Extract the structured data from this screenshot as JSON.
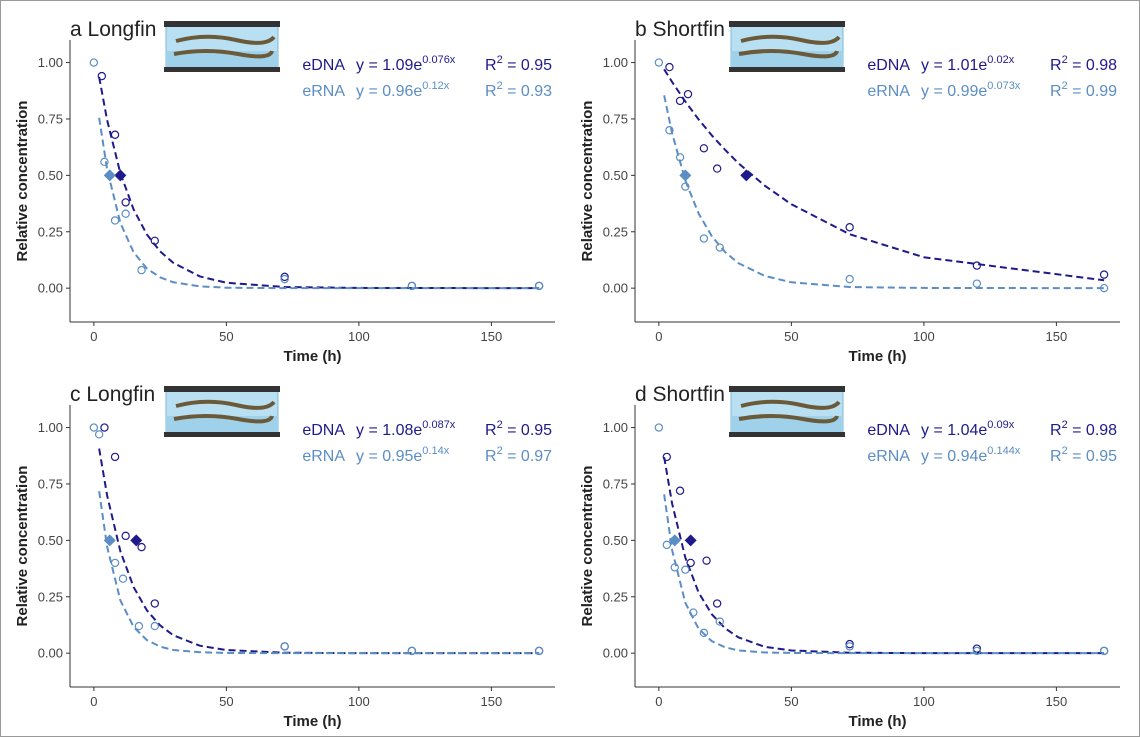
{
  "chart_data": [
    {
      "type": "scatter",
      "title": "a Longfin",
      "x_label": "Time (h)",
      "y_label": "Relative concentration",
      "xlim": [
        -9,
        174
      ],
      "ylim": [
        -0.15,
        1.1
      ],
      "xticks": [
        0,
        50,
        100,
        150
      ],
      "yticks": [
        {
          "value": 0,
          "label": "0.00"
        },
        {
          "value": 0.25,
          "label": "0.25"
        },
        {
          "value": 0.5,
          "label": "0.50"
        },
        {
          "value": 0.75,
          "label": "0.75"
        },
        {
          "value": 1,
          "label": "1.00"
        }
      ],
      "series": [
        {
          "name": "eDNA",
          "color": "#1f1a8c",
          "x": [
            3,
            8,
            12,
            23,
            72,
            120,
            168
          ],
          "values": [
            0.94,
            0.68,
            0.38,
            0.21,
            0.05,
            0.01,
            0.01
          ],
          "half_life_x": 10,
          "half_life_y": 0.5,
          "fit_x": [
            2,
            5,
            10,
            15,
            20,
            25,
            30,
            40,
            50,
            72,
            100,
            168
          ],
          "fit_values": [
            0.936,
            0.745,
            0.51,
            0.349,
            0.238,
            0.163,
            0.112,
            0.052,
            0.024,
            0.005,
            0.001,
            0
          ],
          "equation": "y = 1.09e",
          "exponent": "0.076x",
          "r2": "R",
          "r2_sup": "2",
          "r2_value": " = 0.95"
        },
        {
          "name": "eRNA",
          "color": "#5b8ec4",
          "x": [
            0,
            4,
            8,
            12,
            18,
            72,
            120,
            168
          ],
          "values": [
            1.0,
            0.56,
            0.3,
            0.33,
            0.08,
            0.04,
            0.01,
            0.01
          ],
          "half_life_x": 6,
          "half_life_y": 0.5,
          "fit_x": [
            2,
            5,
            10,
            15,
            20,
            25,
            30,
            40,
            50,
            72,
            100,
            168
          ],
          "fit_values": [
            0.755,
            0.527,
            0.289,
            0.159,
            0.087,
            0.048,
            0.026,
            0.008,
            0.002,
            0,
            0,
            0
          ],
          "equation": "y = 0.96e",
          "exponent": "0.12x",
          "r2": "R",
          "r2_sup": "2",
          "r2_value": " = 0.93"
        }
      ]
    },
    {
      "type": "scatter",
      "title": "b Shortfin",
      "x_label": "Time (h)",
      "y_label": "Relative concentration",
      "xlim": [
        -9,
        174
      ],
      "ylim": [
        -0.15,
        1.1
      ],
      "xticks": [
        0,
        50,
        100,
        150
      ],
      "yticks": [
        {
          "value": 0,
          "label": "0.00"
        },
        {
          "value": 0.25,
          "label": "0.25"
        },
        {
          "value": 0.5,
          "label": "0.50"
        },
        {
          "value": 0.75,
          "label": "0.75"
        },
        {
          "value": 1,
          "label": "1.00"
        }
      ],
      "series": [
        {
          "name": "eDNA",
          "color": "#1f1a8c",
          "x": [
            4,
            8,
            11,
            17,
            22,
            72,
            120,
            168
          ],
          "values": [
            0.98,
            0.83,
            0.86,
            0.62,
            0.53,
            0.27,
            0.1,
            0.06
          ],
          "half_life_x": 33,
          "half_life_y": 0.5,
          "fit_x": [
            2,
            5,
            10,
            15,
            20,
            25,
            30,
            40,
            50,
            72,
            100,
            168
          ],
          "fit_values": [
            0.97,
            0.914,
            0.827,
            0.748,
            0.677,
            0.613,
            0.554,
            0.454,
            0.372,
            0.239,
            0.137,
            0.035
          ],
          "equation": "y = 1.01e",
          "exponent": "0.02x",
          "r2": "R",
          "r2_sup": "2",
          "r2_value": " = 0.98"
        },
        {
          "name": "eRNA",
          "color": "#5b8ec4",
          "x": [
            0,
            4,
            8,
            10,
            17,
            23,
            72,
            120,
            168
          ],
          "values": [
            1.0,
            0.7,
            0.58,
            0.45,
            0.22,
            0.18,
            0.04,
            0.02,
            0.0
          ],
          "half_life_x": 10,
          "half_life_y": 0.5,
          "fit_x": [
            2,
            5,
            10,
            15,
            20,
            25,
            30,
            40,
            50,
            72,
            100,
            168
          ],
          "fit_values": [
            0.855,
            0.687,
            0.477,
            0.331,
            0.23,
            0.16,
            0.111,
            0.054,
            0.026,
            0.005,
            0.001,
            0
          ],
          "equation": "y = 0.99e",
          "exponent": "0.073x",
          "r2": "R",
          "r2_sup": "2",
          "r2_value": " = 0.99"
        }
      ]
    },
    {
      "type": "scatter",
      "title": "c Longfin",
      "x_label": "Time (h)",
      "y_label": "Relative concentration",
      "xlim": [
        -9,
        174
      ],
      "ylim": [
        -0.15,
        1.1
      ],
      "xticks": [
        0,
        50,
        100,
        150
      ],
      "yticks": [
        {
          "value": 0,
          "label": "0.00"
        },
        {
          "value": 0.25,
          "label": "0.25"
        },
        {
          "value": 0.5,
          "label": "0.50"
        },
        {
          "value": 0.75,
          "label": "0.75"
        },
        {
          "value": 1,
          "label": "1.00"
        }
      ],
      "series": [
        {
          "name": "eDNA",
          "color": "#1f1a8c",
          "x": [
            4,
            8,
            12,
            18,
            23,
            72,
            120,
            168
          ],
          "values": [
            1.0,
            0.87,
            0.52,
            0.47,
            0.22,
            0.03,
            0.01,
            0.01
          ],
          "half_life_x": 16,
          "half_life_y": 0.5,
          "fit_x": [
            2,
            5,
            10,
            15,
            20,
            25,
            30,
            40,
            50,
            72,
            100,
            168
          ],
          "fit_values": [
            0.907,
            0.699,
            0.452,
            0.293,
            0.19,
            0.123,
            0.079,
            0.033,
            0.014,
            0.002,
            0,
            0
          ],
          "equation": "y = 1.08e",
          "exponent": "0.087x",
          "r2": "R",
          "r2_sup": "2",
          "r2_value": " = 0.95"
        },
        {
          "name": "eRNA",
          "color": "#5b8ec4",
          "x": [
            0,
            2,
            8,
            11,
            17,
            23,
            72,
            120,
            168
          ],
          "values": [
            1.0,
            0.97,
            0.4,
            0.33,
            0.12,
            0.12,
            0.03,
            0.01,
            0.01
          ],
          "half_life_x": 6,
          "half_life_y": 0.5,
          "fit_x": [
            2,
            5,
            10,
            15,
            20,
            25,
            30,
            40,
            50,
            72,
            100,
            168
          ],
          "fit_values": [
            0.718,
            0.472,
            0.234,
            0.116,
            0.058,
            0.029,
            0.014,
            0.004,
            0.001,
            0,
            0,
            0
          ],
          "equation": "y = 0.95e",
          "exponent": "0.14x",
          "r2": "R",
          "r2_sup": "2",
          "r2_value": " = 0.97"
        }
      ]
    },
    {
      "type": "scatter",
      "title": "d Shortfin",
      "x_label": "Time (h)",
      "y_label": "Relative concentration",
      "xlim": [
        -9,
        174
      ],
      "ylim": [
        -0.15,
        1.1
      ],
      "xticks": [
        0,
        50,
        100,
        150
      ],
      "yticks": [
        {
          "value": 0,
          "label": "0.00"
        },
        {
          "value": 0.25,
          "label": "0.25"
        },
        {
          "value": 0.5,
          "label": "0.50"
        },
        {
          "value": 0.75,
          "label": "0.75"
        },
        {
          "value": 1,
          "label": "1.00"
        }
      ],
      "series": [
        {
          "name": "eDNA",
          "color": "#1f1a8c",
          "x": [
            3,
            8,
            12,
            18,
            22,
            72,
            120,
            168
          ],
          "values": [
            0.87,
            0.72,
            0.4,
            0.41,
            0.22,
            0.04,
            0.02,
            0.01
          ],
          "half_life_x": 12,
          "half_life_y": 0.5,
          "fit_x": [
            2,
            5,
            10,
            15,
            20,
            25,
            30,
            40,
            50,
            72,
            100,
            168
          ],
          "fit_values": [
            0.869,
            0.663,
            0.423,
            0.269,
            0.172,
            0.11,
            0.07,
            0.028,
            0.012,
            0.002,
            0,
            0
          ],
          "equation": "y = 1.04e",
          "exponent": "0.09x",
          "r2": "R",
          "r2_sup": "2",
          "r2_value": " = 0.98"
        },
        {
          "name": "eRNA",
          "color": "#5b8ec4",
          "x": [
            0,
            3,
            6,
            10,
            13,
            17,
            23,
            72,
            120,
            168
          ],
          "values": [
            1.0,
            0.48,
            0.38,
            0.37,
            0.18,
            0.09,
            0.14,
            0.03,
            0.01,
            0.01
          ],
          "half_life_x": 6,
          "half_life_y": 0.5,
          "fit_x": [
            2,
            5,
            10,
            15,
            20,
            25,
            30,
            40,
            50,
            72,
            100,
            168
          ],
          "fit_values": [
            0.704,
            0.457,
            0.223,
            0.108,
            0.053,
            0.026,
            0.012,
            0.003,
            0.001,
            0,
            0,
            0
          ],
          "equation": "y = 0.94e",
          "exponent": "0.144x",
          "r2": "R",
          "r2_sup": "2",
          "r2_value": " = 0.95"
        }
      ]
    }
  ]
}
